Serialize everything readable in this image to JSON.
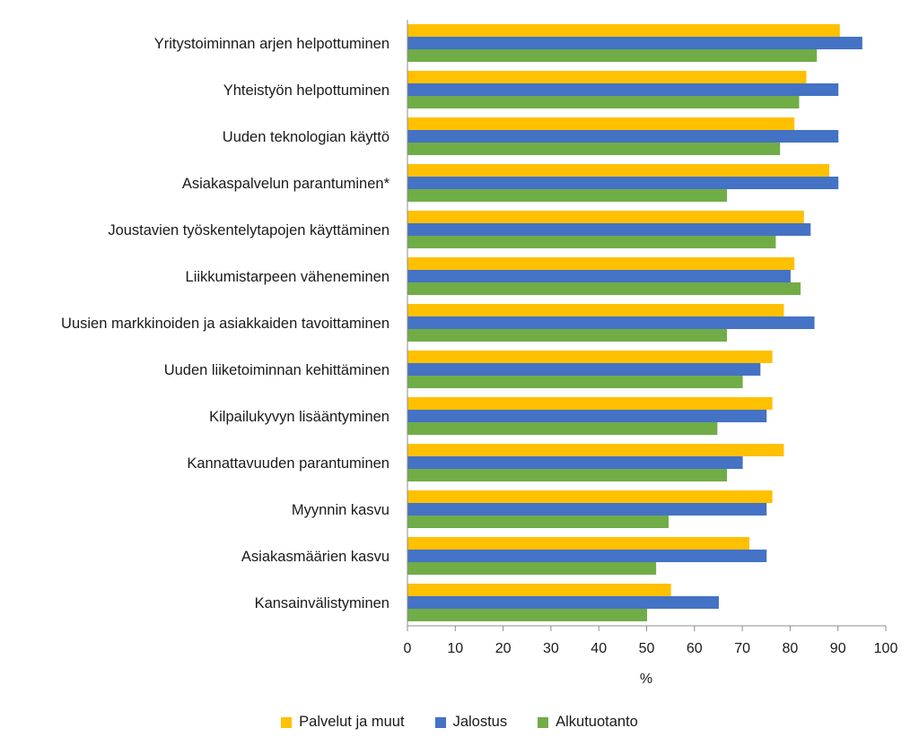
{
  "chart_data": {
    "type": "bar",
    "orientation": "horizontal",
    "categories": [
      "Yritystoiminnan arjen helpottuminen",
      "Yhteistyön helpottuminen",
      "Uuden teknologian käyttö",
      "Asiakaspalvelun parantuminen*",
      "Joustavien työskentelytapojen käyttäminen",
      "Liikkumistarpeen väheneminen",
      "Uusien markkinoiden ja asiakkaiden tavoittaminen",
      "Uuden liiketoiminnan kehittäminen",
      "Kilpailukyvyn lisääntyminen",
      "Kannattavuuden parantuminen",
      "Myynnin kasvu",
      "Asiakasmäärien kasvu",
      "Kansainvälistyminen"
    ],
    "series": [
      {
        "name": "Palvelut ja muut",
        "color": "#FFC000",
        "values": [
          90.3,
          83.3,
          80.8,
          88.1,
          82.8,
          80.8,
          78.6,
          76.2,
          76.2,
          78.6,
          76.2,
          71.4,
          55.0
        ]
      },
      {
        "name": "Jalostus",
        "color": "#4472C4",
        "values": [
          95.0,
          90.0,
          90.0,
          90.0,
          84.2,
          80.0,
          85.0,
          73.7,
          75.0,
          70.0,
          75.0,
          75.0,
          65.0
        ]
      },
      {
        "name": "Alkutuotanto",
        "color": "#70AD47",
        "values": [
          85.5,
          81.8,
          77.8,
          66.7,
          76.9,
          82.1,
          66.7,
          70.0,
          64.7,
          66.7,
          54.5,
          51.9,
          50.0
        ]
      }
    ],
    "xlim": [
      0,
      100
    ],
    "xticks": [
      "0",
      "10",
      "20",
      "30",
      "40",
      "50",
      "60",
      "70",
      "80",
      "90",
      "100"
    ],
    "xlabel": "%",
    "ylabel": "",
    "title": "",
    "grid": false,
    "legend_position": "bottom"
  }
}
